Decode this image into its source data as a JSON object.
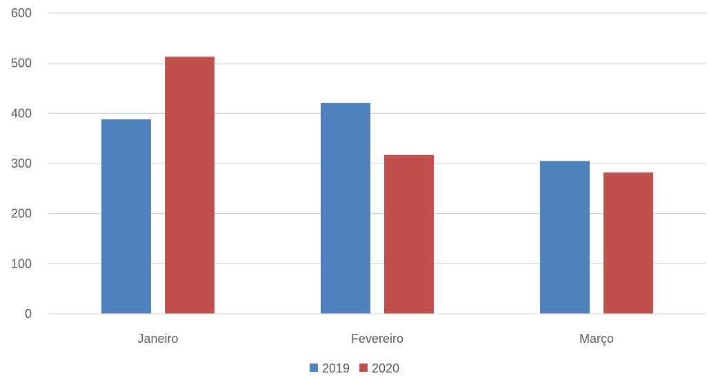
{
  "chart_data": {
    "type": "bar",
    "categories": [
      "Janeiro",
      "Fevereiro",
      "Março"
    ],
    "series": [
      {
        "name": "2019",
        "color": "#4F81BD",
        "values": [
          388,
          421,
          305
        ]
      },
      {
        "name": "2020",
        "color": "#C0504D",
        "values": [
          513,
          317,
          282
        ]
      }
    ],
    "ylim": [
      0,
      600
    ],
    "yticks": [
      0,
      100,
      200,
      300,
      400,
      500,
      600
    ],
    "grid": true,
    "legend_position": "bottom"
  }
}
